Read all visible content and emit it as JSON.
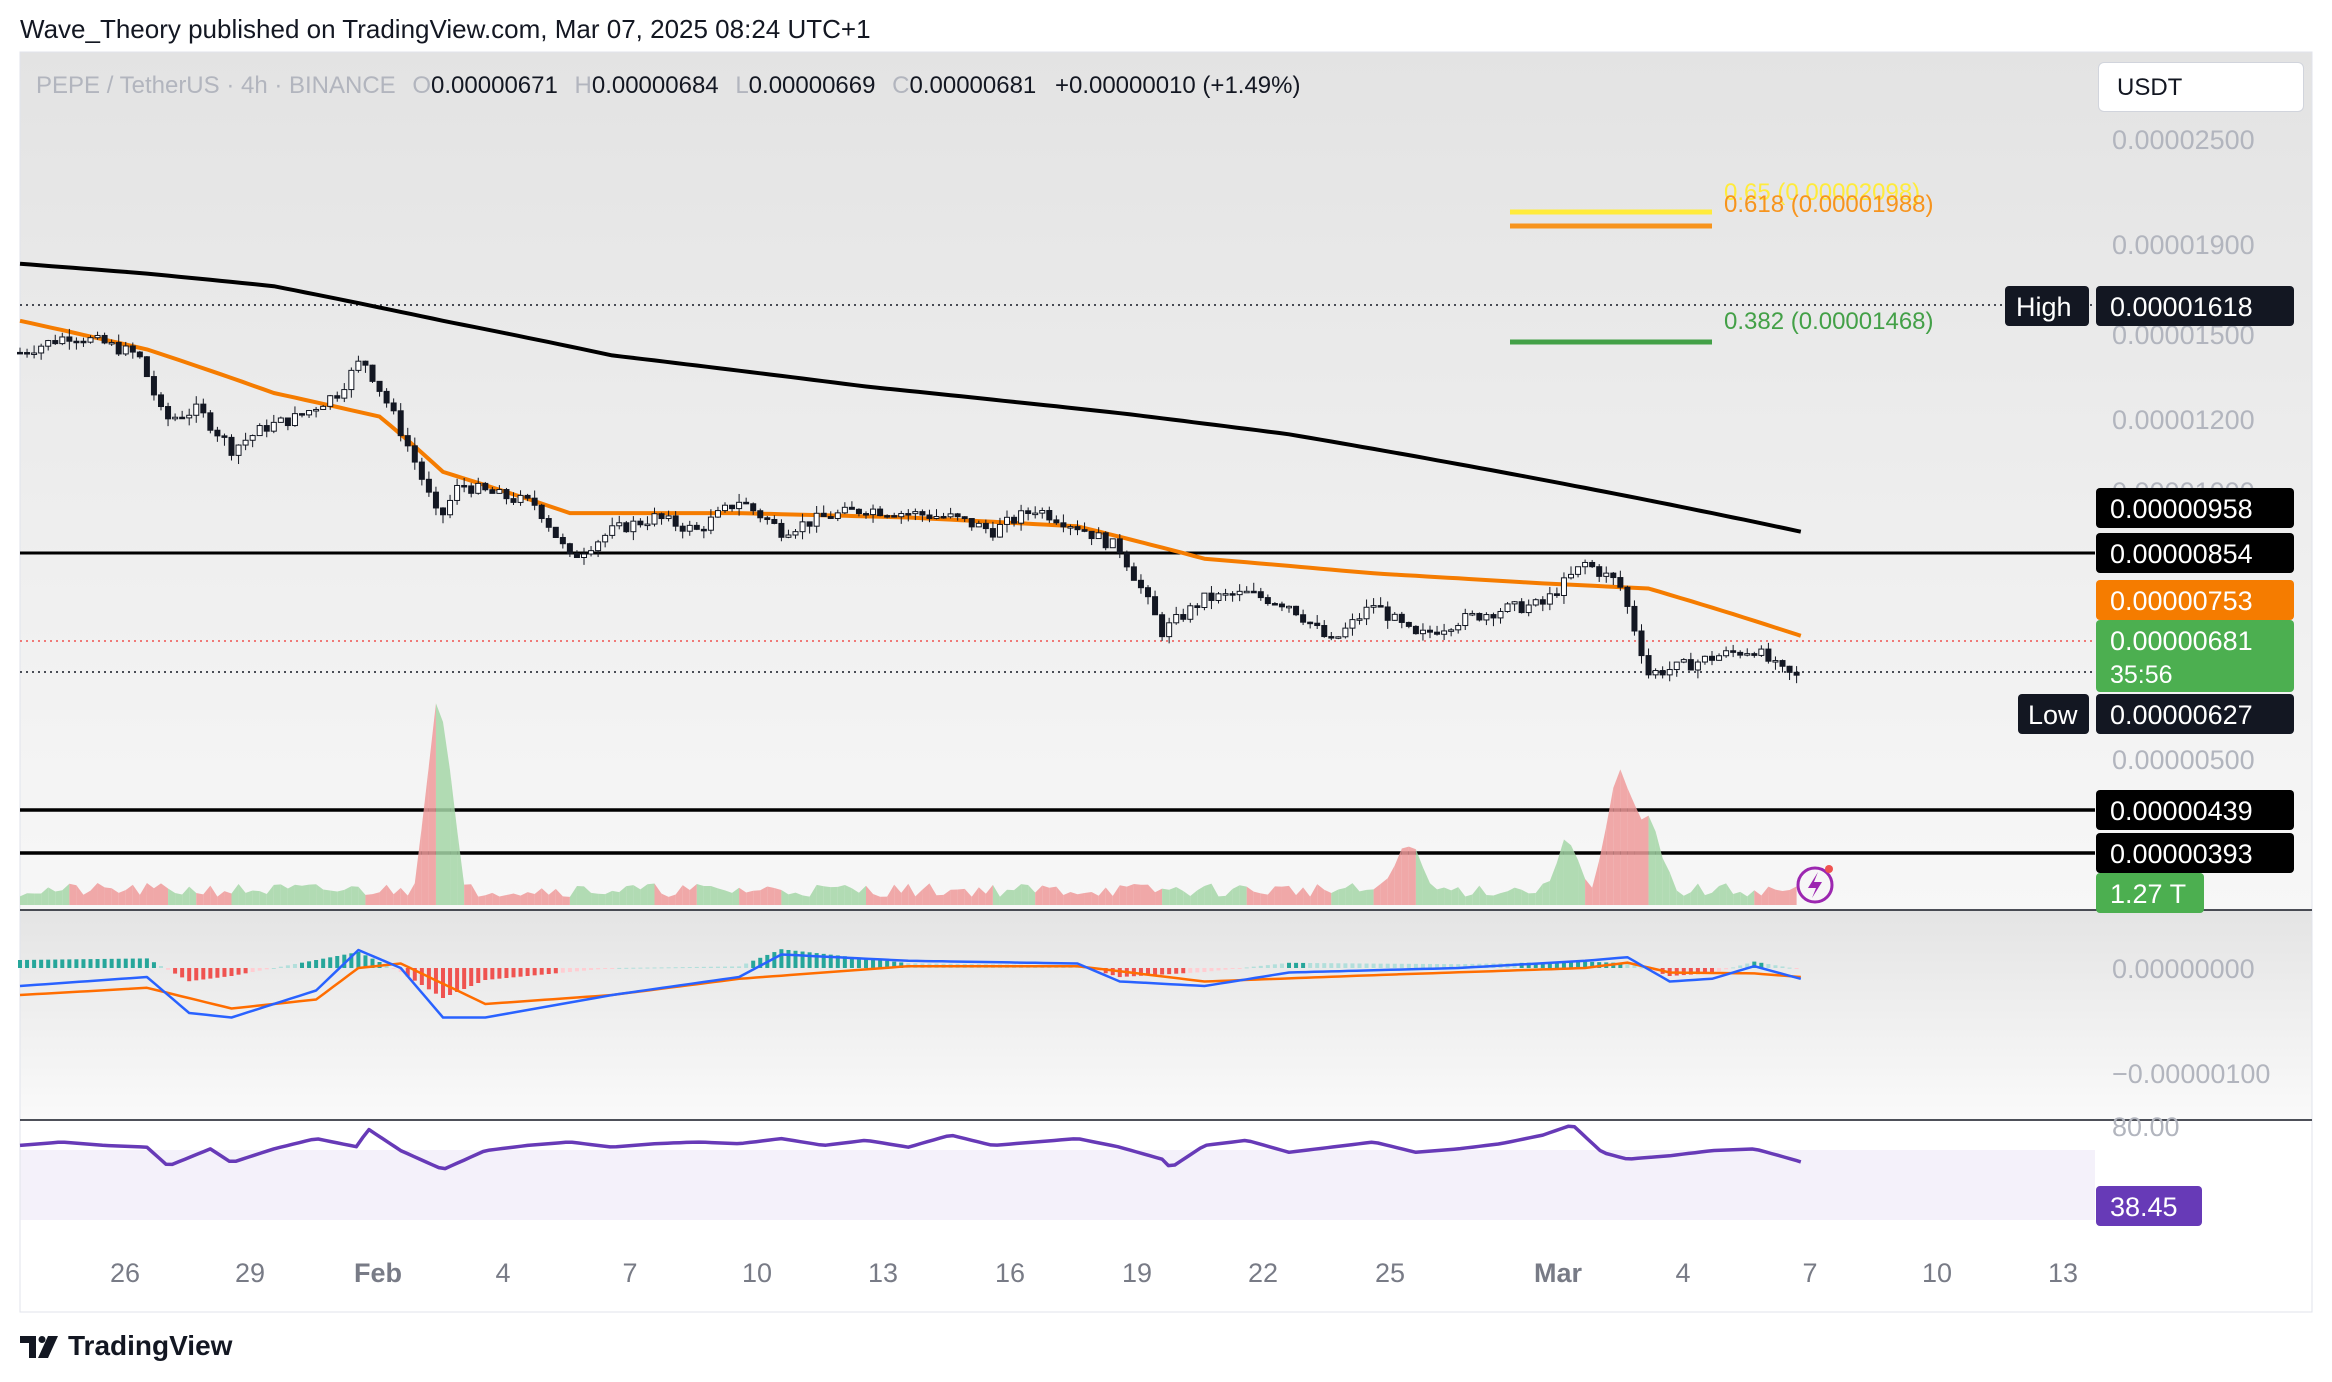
{
  "header": {
    "publisher_line": "Wave_Theory published on TradingView.com, Mar 07, 2025 08:24 UTC+1"
  },
  "footer": {
    "brand": "TradingView"
  },
  "toolbar": {
    "currency": "USDT"
  },
  "legend": {
    "symbol": "PEPE / TetherUS · 4h · BINANCE",
    "o_label": "O",
    "open": "0.00000671",
    "h_label": "H",
    "high": "0.00000684",
    "l_label": "L",
    "low": "0.00000669",
    "c_label": "C",
    "close": "0.00000681",
    "change": "+0.00000010 (+1.49%)"
  },
  "colors": {
    "up": "#26a69a",
    "down": "#ef5350",
    "ema_fast": "#f57c00",
    "ema_slow": "#000000",
    "fib_618": "#f7941d",
    "fib_65": "#ffeb3b",
    "fib_382": "#43a047",
    "macd": "#2962ff",
    "signal": "#ff6d00",
    "rsi": "#673ab7",
    "vol_up": "#a5d6a7",
    "vol_down": "#ef9a9a"
  },
  "chart_data": {
    "type": "candlestick",
    "timeframe": "4h",
    "y_axis_ticks": [
      "0.00002500",
      "0.00001900",
      "0.00001500",
      "0.00001200",
      "0.00001000",
      "0.00000500"
    ],
    "x_axis_ticks": [
      "26",
      "29",
      "Feb",
      "4",
      "7",
      "10",
      "13",
      "16",
      "19",
      "22",
      "25",
      "Mar",
      "4",
      "7",
      "10",
      "13"
    ],
    "fib_levels": [
      {
        "label": "0.65 (0.00002098)",
        "value": 2.098e-05
      },
      {
        "label": "0.618 (0.00001988)",
        "value": 1.988e-05
      },
      {
        "label": "0.382 (0.00001468)",
        "value": 1.468e-05
      }
    ],
    "horizontal_levels": [
      {
        "value": "0.00000958"
      },
      {
        "value": "0.00000854"
      },
      {
        "value": "0.00000439"
      },
      {
        "value": "0.00000393"
      }
    ],
    "markers": {
      "high_label": "High",
      "high_value": "0.00001618",
      "low_label": "Low",
      "low_value": "0.00000627",
      "ema_value": "0.00000753",
      "last_price": "0.00000681",
      "countdown": "35:56"
    },
    "price_path": [
      [
        0,
        14.5
      ],
      [
        1.2,
        15.1
      ],
      [
        2.0,
        14.8
      ],
      [
        2.8,
        14.4
      ],
      [
        3.4,
        12.4
      ],
      [
        4.2,
        12.7
      ],
      [
        5.0,
        11.6
      ],
      [
        5.8,
        12.2
      ],
      [
        6.6,
        12.5
      ],
      [
        7.5,
        13.2
      ],
      [
        8.1,
        14.3
      ],
      [
        8.8,
        12.6
      ],
      [
        9.4,
        11.1
      ],
      [
        9.9,
        9.8
      ],
      [
        10.4,
        10.7
      ],
      [
        11.0,
        10.5
      ],
      [
        12.2,
        10.2
      ],
      [
        13.0,
        9.0
      ],
      [
        14.0,
        9.6
      ],
      [
        15.0,
        9.9
      ],
      [
        16.0,
        9.6
      ],
      [
        17.0,
        10.3
      ],
      [
        18.0,
        9.6
      ],
      [
        19.0,
        9.9
      ],
      [
        20.0,
        10.1
      ],
      [
        21.0,
        10.0
      ],
      [
        22.0,
        9.9
      ],
      [
        23.0,
        9.6
      ],
      [
        24.0,
        10.1
      ],
      [
        25.0,
        9.7
      ],
      [
        26.0,
        9.2
      ],
      [
        27.0,
        7.6
      ],
      [
        28.0,
        8.2
      ],
      [
        29.0,
        8.3
      ],
      [
        30.0,
        8.1
      ],
      [
        31.0,
        7.4
      ],
      [
        32.0,
        8.1
      ],
      [
        33.0,
        7.5
      ],
      [
        34.0,
        7.8
      ],
      [
        35.0,
        8.0
      ],
      [
        36.0,
        8.1
      ],
      [
        37.0,
        8.9
      ],
      [
        37.8,
        8.5
      ],
      [
        38.5,
        6.9
      ],
      [
        39.2,
        7.0
      ],
      [
        40.2,
        7.2
      ],
      [
        41.0,
        7.3
      ],
      [
        41.6,
        6.95
      ],
      [
        42.1,
        6.81
      ]
    ],
    "ema_fast_path": [
      [
        0,
        15.6
      ],
      [
        3,
        14.6
      ],
      [
        6,
        13.2
      ],
      [
        8.5,
        12.5
      ],
      [
        10,
        11.0
      ],
      [
        13,
        10.0
      ],
      [
        17,
        10.0
      ],
      [
        21,
        9.9
      ],
      [
        25,
        9.7
      ],
      [
        28,
        9.0
      ],
      [
        32,
        8.7
      ],
      [
        36,
        8.5
      ],
      [
        38.5,
        8.4
      ],
      [
        42.1,
        7.53
      ]
    ],
    "ema_slow_path": [
      [
        0,
        17.8
      ],
      [
        3,
        17.4
      ],
      [
        6,
        16.9
      ],
      [
        10,
        15.6
      ],
      [
        14,
        14.4
      ],
      [
        20,
        13.4
      ],
      [
        26,
        12.6
      ],
      [
        30,
        12.0
      ],
      [
        34,
        11.2
      ],
      [
        38,
        10.4
      ],
      [
        42.1,
        9.58
      ]
    ],
    "volume_spikes": [
      {
        "day": 9.9,
        "height": 1.0,
        "direction": "down"
      },
      {
        "day": 37.8,
        "height": 0.6,
        "direction": "up"
      },
      {
        "day": 38.5,
        "height": 0.35,
        "direction": "down"
      },
      {
        "day": 36.6,
        "height": 0.25,
        "direction": "down"
      },
      {
        "day": 32.8,
        "height": 0.25,
        "direction": "up"
      }
    ],
    "volume_value": "1.27 T",
    "macd": {
      "y_ticks": [
        "0.00000000",
        "−0.00000100"
      ],
      "macd_path": [
        [
          0,
          -20
        ],
        [
          3,
          -10
        ],
        [
          4,
          -50
        ],
        [
          5,
          -55
        ],
        [
          7,
          -25
        ],
        [
          8,
          20
        ],
        [
          9,
          0
        ],
        [
          10,
          -55
        ],
        [
          11,
          -55
        ],
        [
          14,
          -30
        ],
        [
          17,
          -10
        ],
        [
          18,
          15
        ],
        [
          21,
          8
        ],
        [
          25,
          5
        ],
        [
          26,
          -15
        ],
        [
          28,
          -20
        ],
        [
          30,
          -5
        ],
        [
          34,
          0
        ],
        [
          37,
          8
        ],
        [
          38,
          12
        ],
        [
          39,
          -15
        ],
        [
          40,
          -12
        ],
        [
          41,
          2
        ],
        [
          42.1,
          -12
        ]
      ],
      "signal_path": [
        [
          0,
          -30
        ],
        [
          3,
          -22
        ],
        [
          5,
          -45
        ],
        [
          7,
          -35
        ],
        [
          8,
          0
        ],
        [
          9,
          5
        ],
        [
          11,
          -40
        ],
        [
          14,
          -30
        ],
        [
          17,
          -12
        ],
        [
          21,
          2
        ],
        [
          25,
          2
        ],
        [
          28,
          -15
        ],
        [
          32,
          -8
        ],
        [
          37,
          0
        ],
        [
          38,
          6
        ],
        [
          39,
          -5
        ],
        [
          41,
          -6
        ],
        [
          42.1,
          -10
        ]
      ]
    },
    "rsi": {
      "y_ticks": [
        "80.00"
      ],
      "value": "38.45",
      "path": [
        [
          0,
          48
        ],
        [
          1,
          50
        ],
        [
          2,
          48
        ],
        [
          3,
          47
        ],
        [
          3.5,
          36
        ],
        [
          4.5,
          46
        ],
        [
          5.0,
          38
        ],
        [
          6,
          46
        ],
        [
          7,
          52
        ],
        [
          8,
          47
        ],
        [
          8.2,
          58
        ],
        [
          9,
          45
        ],
        [
          10,
          34
        ],
        [
          11,
          45
        ],
        [
          12,
          48
        ],
        [
          13,
          50
        ],
        [
          14,
          47
        ],
        [
          15,
          49
        ],
        [
          16,
          50
        ],
        [
          17,
          49
        ],
        [
          18,
          52
        ],
        [
          19,
          48
        ],
        [
          20,
          51
        ],
        [
          21,
          47
        ],
        [
          22,
          54
        ],
        [
          23,
          48
        ],
        [
          24,
          50
        ],
        [
          25,
          52
        ],
        [
          26,
          47
        ],
        [
          27,
          40
        ],
        [
          27.2,
          35
        ],
        [
          28,
          48
        ],
        [
          29,
          51
        ],
        [
          30,
          44
        ],
        [
          31,
          47
        ],
        [
          32,
          50
        ],
        [
          33,
          44
        ],
        [
          34,
          46
        ],
        [
          35,
          49
        ],
        [
          36,
          54
        ],
        [
          36.7,
          60
        ],
        [
          37.4,
          44
        ],
        [
          38,
          40
        ],
        [
          39,
          42
        ],
        [
          40,
          45
        ],
        [
          41,
          46
        ],
        [
          41.6,
          42
        ],
        [
          42.1,
          38.45
        ]
      ]
    }
  }
}
